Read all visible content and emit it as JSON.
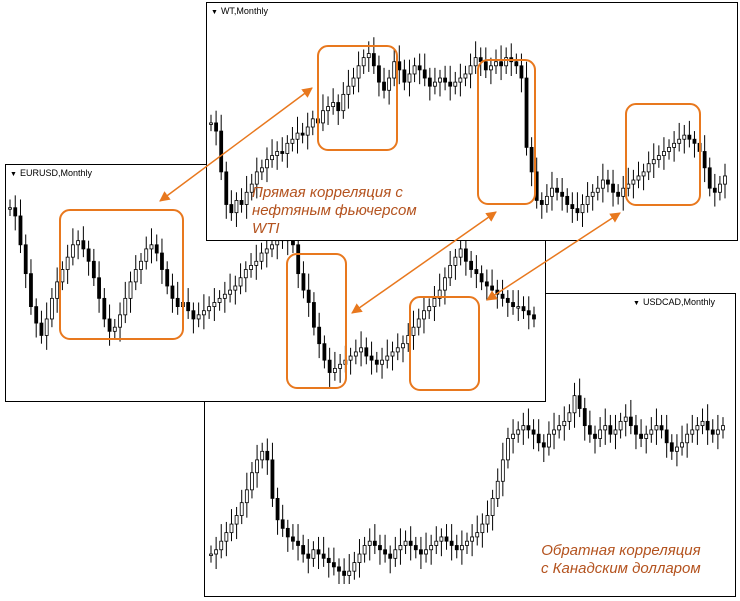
{
  "panels": {
    "wti": {
      "title": "WT,Monthly"
    },
    "eurusd": {
      "title": "EURUSD,Monthly"
    },
    "usdcad": {
      "title": "USDCAD,Monthly"
    }
  },
  "captions": {
    "direct": [
      "Прямая корреляция с",
      "нефтяным фьючерсом",
      "WTI"
    ],
    "inverse": [
      "Обратная корреляция",
      "с Канадским долларом"
    ]
  },
  "colors": {
    "highlight": "#e8781e",
    "caption": "#b4531f",
    "candle": "#000000"
  },
  "series": {
    "wti": [
      52,
      48,
      28,
      12,
      8,
      14,
      12,
      18,
      22,
      28,
      30,
      34,
      36,
      38,
      37,
      42,
      44,
      47,
      46,
      50,
      54,
      52,
      58,
      60,
      62,
      58,
      66,
      70,
      74,
      80,
      84,
      86,
      80,
      72,
      68,
      74,
      82,
      78,
      72,
      76,
      80,
      78,
      74,
      70,
      72,
      74,
      72,
      70,
      72,
      74,
      76,
      80,
      84,
      82,
      78,
      80,
      82,
      80,
      84,
      82,
      80,
      74,
      40,
      28,
      14,
      12,
      16,
      20,
      18,
      16,
      12,
      10,
      8,
      12,
      16,
      18,
      20,
      24,
      22,
      18,
      16,
      20,
      22,
      24,
      26,
      28,
      32,
      34,
      36,
      38,
      40,
      42,
      44,
      46,
      44,
      42,
      38,
      30,
      20,
      18,
      22,
      26
    ],
    "eurusd": [
      88,
      84,
      70,
      56,
      40,
      32,
      26,
      34,
      44,
      52,
      58,
      64,
      70,
      72,
      68,
      62,
      54,
      44,
      34,
      28,
      30,
      36,
      44,
      52,
      58,
      62,
      68,
      70,
      66,
      58,
      50,
      44,
      40,
      42,
      38,
      34,
      36,
      38,
      40,
      42,
      44,
      46,
      48,
      50,
      54,
      58,
      60,
      62,
      66,
      68,
      70,
      72,
      74,
      72,
      70,
      56,
      48,
      42,
      30,
      22,
      14,
      8,
      10,
      12,
      14,
      16,
      18,
      20,
      16,
      14,
      12,
      14,
      16,
      18,
      20,
      22,
      26,
      30,
      34,
      38,
      40,
      44,
      48,
      54,
      60,
      64,
      68,
      62,
      58,
      56,
      52,
      50,
      48,
      46,
      44,
      42,
      40,
      40,
      38,
      36,
      34
    ],
    "usdcad": [
      14,
      16,
      20,
      24,
      28,
      32,
      38,
      44,
      52,
      58,
      62,
      58,
      40,
      30,
      26,
      22,
      20,
      18,
      14,
      12,
      16,
      14,
      12,
      10,
      8,
      6,
      4,
      6,
      10,
      14,
      18,
      20,
      18,
      16,
      14,
      12,
      16,
      18,
      20,
      18,
      16,
      14,
      16,
      18,
      20,
      22,
      20,
      18,
      16,
      18,
      20,
      22,
      24,
      28,
      32,
      40,
      48,
      58,
      68,
      70,
      72,
      74,
      72,
      70,
      66,
      64,
      70,
      72,
      74,
      76,
      80,
      88,
      82,
      74,
      70,
      68,
      72,
      74,
      70,
      72,
      76,
      78,
      74,
      70,
      68,
      70,
      72,
      74,
      72,
      66,
      62,
      64,
      66,
      70,
      72,
      74,
      76,
      72,
      70,
      72,
      74
    ]
  }
}
